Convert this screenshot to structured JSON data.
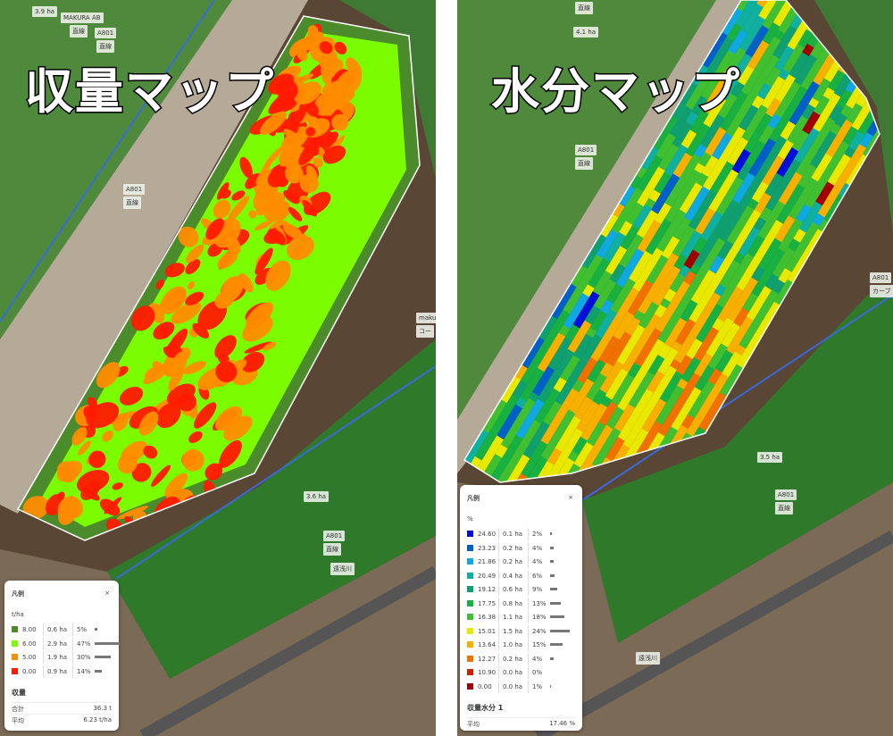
{
  "panels": [
    {
      "title": "収量マップ",
      "map_labels": [
        "3.9 ha",
        "MAKURA AB",
        "直線",
        "A801",
        "直線",
        "A801",
        "直線",
        "3.6 ha",
        "A801",
        "直線",
        "遠浅川",
        "makura",
        "コー"
      ],
      "legend": {
        "title": "凡例",
        "close": "×",
        "unit": "t/ha",
        "rows": [
          {
            "value": "8.00",
            "area": "0.6 ha",
            "share": "5%",
            "color": "#4b8b2b"
          },
          {
            "value": "6.00",
            "area": "2.9 ha",
            "share": "47%",
            "color": "#7cfc00"
          },
          {
            "value": "5.00",
            "area": "1.9 ha",
            "share": "30%",
            "color": "#ff8c00"
          },
          {
            "value": "0.00",
            "area": "0.9 ha",
            "share": "14%",
            "color": "#ff1a00"
          }
        ],
        "summary_title": "収量",
        "summary": [
          {
            "label": "合計",
            "value": "36.3 t"
          },
          {
            "label": "平均",
            "value": "6.23 t/ha"
          }
        ]
      }
    },
    {
      "title": "水分マップ",
      "map_labels": [
        "直線",
        "4.1 ha",
        "A801",
        "直線",
        "A801",
        "カーブ",
        "3.5 ha",
        "A801",
        "直線",
        "遠浅川"
      ],
      "legend": {
        "title": "凡例",
        "close": "×",
        "unit": "%",
        "rows": [
          {
            "value": "24.60",
            "area": "0.1 ha",
            "share": "2%",
            "color": "#0010d8"
          },
          {
            "value": "23.23",
            "area": "0.2 ha",
            "share": "4%",
            "color": "#0060c8"
          },
          {
            "value": "21.86",
            "area": "0.2 ha",
            "share": "4%",
            "color": "#10a8e0"
          },
          {
            "value": "20.49",
            "area": "0.4 ha",
            "share": "6%",
            "color": "#10b0a0"
          },
          {
            "value": "19.12",
            "area": "0.6 ha",
            "share": "9%",
            "color": "#10a070"
          },
          {
            "value": "17.75",
            "area": "0.8 ha",
            "share": "13%",
            "color": "#18b040"
          },
          {
            "value": "16.38",
            "area": "1.1 ha",
            "share": "18%",
            "color": "#40c030"
          },
          {
            "value": "15.01",
            "area": "1.5 ha",
            "share": "24%",
            "color": "#e8e800"
          },
          {
            "value": "13.64",
            "area": "1.0 ha",
            "share": "15%",
            "color": "#f8b000"
          },
          {
            "value": "12.27",
            "area": "0.2 ha",
            "share": "4%",
            "color": "#f07000"
          },
          {
            "value": "10.90",
            "area": "0.0 ha",
            "share": "0%",
            "color": "#d02000"
          },
          {
            "value": "0.00",
            "area": "0.0 ha",
            "share": "1%",
            "color": "#a00000"
          }
        ],
        "summary_title": "収量水分 1",
        "summary": [
          {
            "label": "平均",
            "value": "17.46 %"
          }
        ]
      }
    }
  ]
}
